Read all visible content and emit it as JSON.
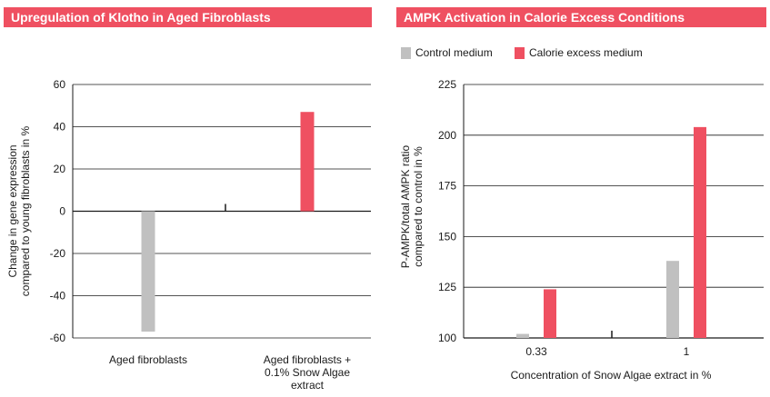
{
  "chart_data": [
    {
      "type": "bar",
      "title": "Upregulation of Klotho in Aged Fibroblasts",
      "categories": [
        [
          "Aged fibroblasts"
        ],
        [
          "Aged fibroblasts +",
          "0.1% Snow Algae",
          "extract"
        ]
      ],
      "values": [
        -57,
        47
      ],
      "bar_colors": [
        "#c0c0c0",
        "#ef5061"
      ],
      "ylabel": [
        "Change in gene expression",
        "compared to young fibroblasts in %"
      ],
      "ylim": [
        -60,
        60
      ],
      "yticks": [
        -60,
        -40,
        -20,
        0,
        20,
        40,
        60
      ],
      "grid": true
    },
    {
      "type": "bar",
      "title": "AMPK Activation in Calorie Excess Conditions",
      "categories": [
        "0.33",
        "1"
      ],
      "series": [
        {
          "name": "Control medium",
          "color": "#c0c0c0",
          "values": [
            102,
            138
          ]
        },
        {
          "name": "Calorie excess medium",
          "color": "#ef5061",
          "values": [
            124,
            204
          ]
        }
      ],
      "xlabel": "Concentration of Snow Algae extract in %",
      "ylabel": [
        "P-AMPK/total AMPK ratio",
        "compared to control in %"
      ],
      "ylim": [
        100,
        225
      ],
      "yticks": [
        100,
        125,
        150,
        175,
        200,
        225
      ],
      "legend": "top-left",
      "grid": true
    }
  ]
}
